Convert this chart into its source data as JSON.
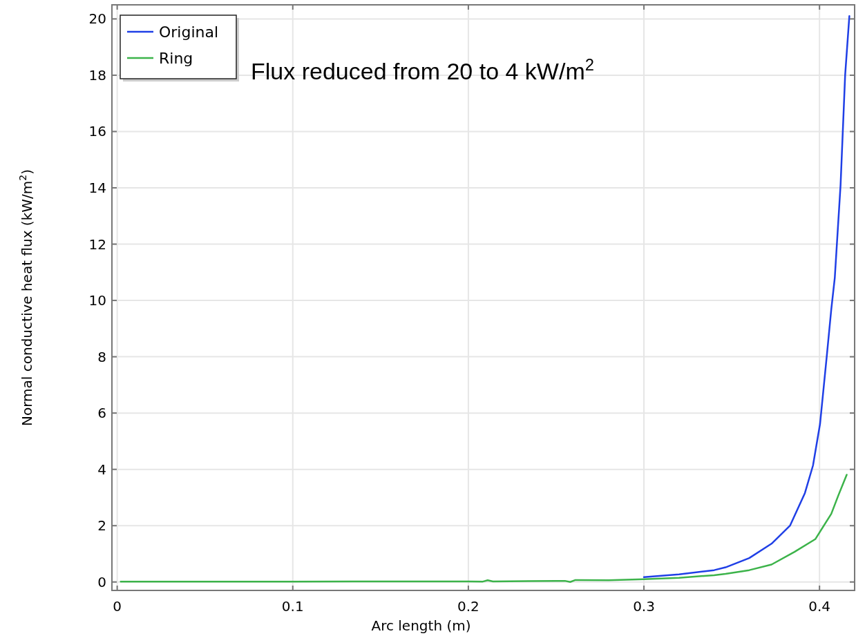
{
  "chart_data": {
    "type": "line",
    "xlabel": "Arc length (m)",
    "ylabel": "Normal conductive heat flux (kW/m$^{2}$)",
    "annotations": [
      "Flux reduced from 20 to 4 kW/m$^{2}$"
    ],
    "xlim": [
      -0.003,
      0.42
    ],
    "ylim": [
      -0.3,
      20.5
    ],
    "xticks": [
      0,
      0.1,
      0.2,
      0.3,
      0.4
    ],
    "yticks": [
      0,
      2,
      4,
      6,
      8,
      10,
      12,
      14,
      16,
      18,
      20
    ],
    "grid": true,
    "legend": "top left",
    "series": [
      {
        "name": "Original",
        "color": "#1f3fe6",
        "x": [
          0.3,
          0.32,
          0.34,
          0.3465,
          0.36,
          0.3727,
          0.3832,
          0.3917,
          0.3963,
          0.4003,
          0.4042,
          0.4067,
          0.4087,
          0.412,
          0.4146,
          0.417
        ],
        "values": [
          0.17,
          0.27,
          0.42,
          0.52,
          0.85,
          1.36,
          2.0,
          3.16,
          4.14,
          5.61,
          8.06,
          9.68,
          10.8,
          14.1,
          18.0,
          20.1
        ]
      },
      {
        "name": "Ring",
        "color": "#3cb34a",
        "x": [
          0.002,
          0.05,
          0.1,
          0.15,
          0.2,
          0.208,
          0.211,
          0.214,
          0.25,
          0.255,
          0.258,
          0.261,
          0.28,
          0.3,
          0.32,
          0.34,
          0.3465,
          0.36,
          0.3727,
          0.3858,
          0.3976,
          0.4067,
          0.4107,
          0.4155
        ],
        "values": [
          0.01,
          0.01,
          0.01,
          0.02,
          0.02,
          0.01,
          0.06,
          0.02,
          0.04,
          0.04,
          0.0,
          0.07,
          0.06,
          0.1,
          0.15,
          0.24,
          0.29,
          0.42,
          0.62,
          1.07,
          1.52,
          2.42,
          3.07,
          3.81
        ]
      }
    ]
  }
}
